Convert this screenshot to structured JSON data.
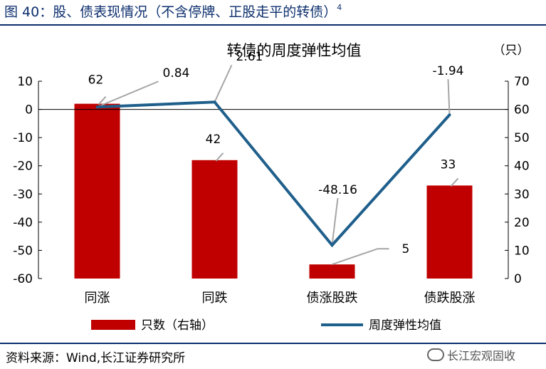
{
  "figure": {
    "title": "图 40：股、债表现情况（不含停牌、正股走平的转债）",
    "note_marker": "4",
    "source": "资料来源：Wind,长江证券研究所",
    "watermark": "长江宏观固收"
  },
  "chart_data": {
    "type": "bar",
    "title": "转债的周度弹性均值",
    "categories": [
      "同涨",
      "同跌",
      "债涨股跌",
      "债跌股涨"
    ],
    "y_left": {
      "min": -60,
      "max": 10,
      "step": 10
    },
    "y_right": {
      "min": 0,
      "max": 70,
      "step": 10,
      "unit": "（只）"
    },
    "series": [
      {
        "name": "只数（右轴）",
        "type": "bar",
        "axis": "right",
        "color": "#c00000",
        "values": [
          62,
          42,
          5,
          33
        ],
        "labels": [
          "62",
          "42",
          "5",
          "33"
        ]
      },
      {
        "name": "周度弹性均值",
        "type": "line",
        "axis": "left",
        "color": "#1f5f8b",
        "values": [
          0.84,
          2.61,
          -48.16,
          -1.94
        ],
        "labels": [
          "0.84",
          "2.61",
          "-48.16",
          "-1.94"
        ]
      }
    ],
    "legend_position": "bottom"
  },
  "colors": {
    "title_blue": "#0d2f6e",
    "bar_red": "#c00000",
    "line_blue": "#1f5f8b",
    "leader_grey": "#a6a6a6"
  }
}
